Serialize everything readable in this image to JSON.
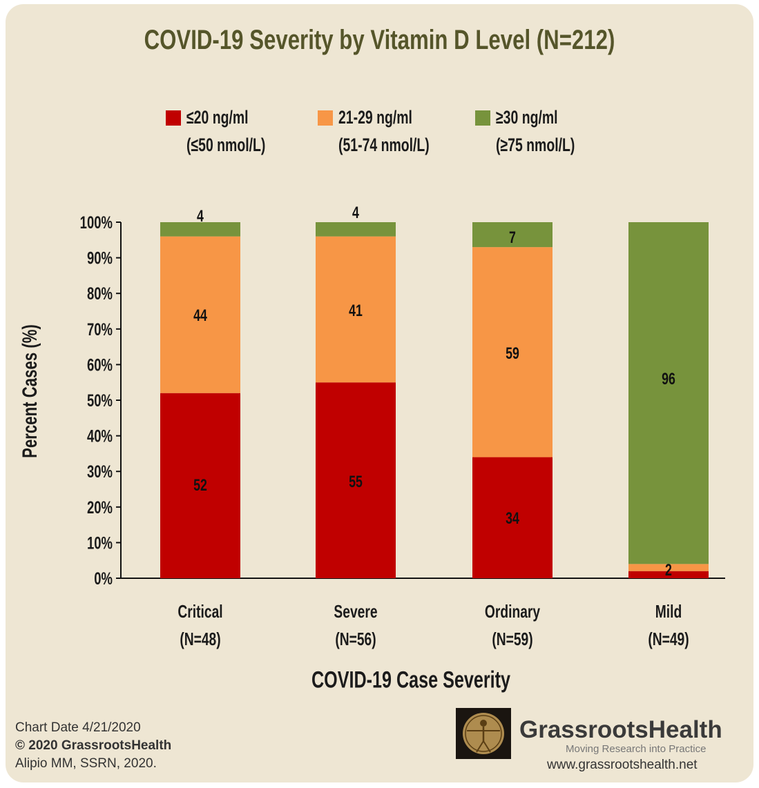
{
  "chart_data": {
    "type": "bar",
    "stacked": true,
    "title": "COVID-19 Severity by Vitamin D Level (N=212)",
    "xlabel": "COVID-19 Case Severity",
    "ylabel": "Percent Cases (%)",
    "ylim": [
      0,
      100
    ],
    "yticks": [
      "0%",
      "10%",
      "20%",
      "30%",
      "40%",
      "50%",
      "60%",
      "70%",
      "80%",
      "90%",
      "100%"
    ],
    "categories": [
      "Critical",
      "Severe",
      "Ordinary",
      "Mild"
    ],
    "category_n": [
      "(N=48)",
      "(N=56)",
      "(N=59)",
      "(N=49)"
    ],
    "legend_position": "top",
    "grid": false,
    "series": [
      {
        "name": "≤20 ng/ml (≤50 nmol/L)",
        "line1": "≤20 ng/ml",
        "line2": "(≤50 nmol/L)",
        "color": "#c00000",
        "values": [
          52,
          55,
          34,
          2
        ],
        "labels": [
          "52",
          "55",
          "34",
          "2"
        ]
      },
      {
        "name": "21-29 ng/ml (51-74 nmol/L)",
        "line1": "21-29 ng/ml",
        "line2": "(51-74 nmol/L)",
        "color": "#f79646",
        "values": [
          44,
          41,
          59,
          2
        ],
        "labels": [
          "44",
          "41",
          "59",
          ""
        ]
      },
      {
        "name": "≥30 ng/ml (≥75 nmol/L)",
        "line1": "≥30 ng/ml",
        "line2": "(≥75 nmol/L)",
        "color": "#77933c",
        "values": [
          4,
          4,
          7,
          96
        ],
        "labels": [
          "4",
          "4",
          "7",
          "96"
        ]
      }
    ]
  },
  "footer": {
    "chart_date": "Chart Date 4/21/2020",
    "copyright": "© 2020 GrassrootsHealth",
    "citation": "Alipio MM, SSRN, 2020.",
    "brand": "GrassrootsHealth",
    "tagline": "Moving Research into Practice",
    "website": "www.grassrootshealth.net"
  }
}
